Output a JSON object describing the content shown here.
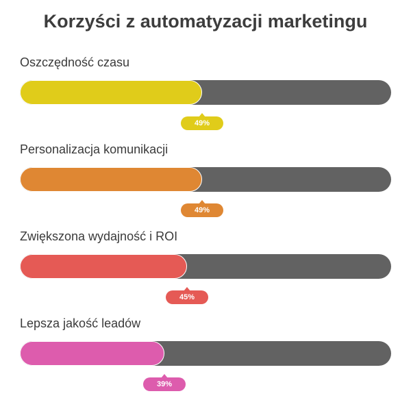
{
  "chart_data": {
    "type": "bar",
    "orientation": "horizontal",
    "title": "Korzyści z automatyzacji marketingu",
    "xlim": [
      0,
      100
    ],
    "unit": "%",
    "track_color": "#626262",
    "categories": [
      "Oszczędność czasu",
      "Personalizacja komunikacji",
      "Zwiększona wydajność i ROI",
      "Lepsza jakość leadów"
    ],
    "values": [
      49,
      49,
      45,
      39
    ],
    "value_labels": [
      "49%",
      "49%",
      "45%",
      "39%"
    ],
    "colors": [
      "#e0cc1a",
      "#df8733",
      "#e55a55",
      "#dd5cad"
    ]
  }
}
